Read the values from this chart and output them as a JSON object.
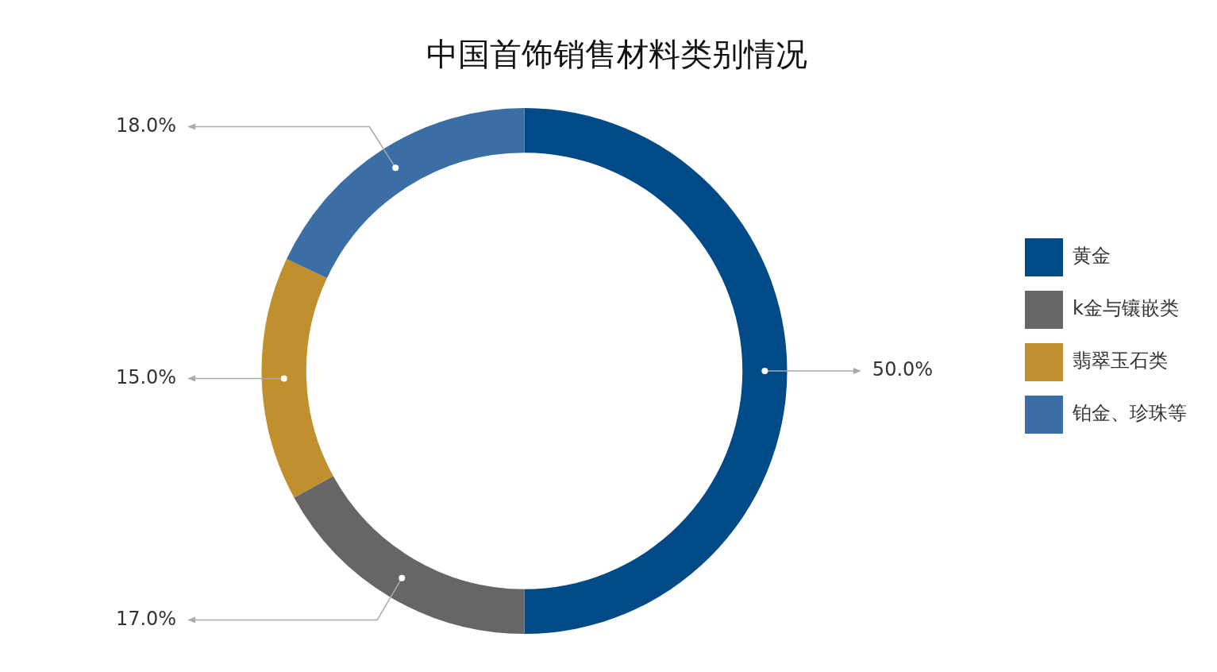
{
  "chart_data": {
    "type": "donut",
    "title": "中国首饰销售材料类别情况",
    "categories": [
      "黄金",
      "k金与镶嵌类",
      "翡翠玉石类",
      "铂金、珍珠等"
    ],
    "values": [
      50,
      17,
      15,
      18
    ],
    "value_labels": [
      "50.0%",
      "17.0%",
      "15.0%",
      "18.0%"
    ],
    "colors": [
      "#004a87",
      "#666666",
      "#c0902e",
      "#3a6ea5"
    ],
    "legend": "right"
  }
}
